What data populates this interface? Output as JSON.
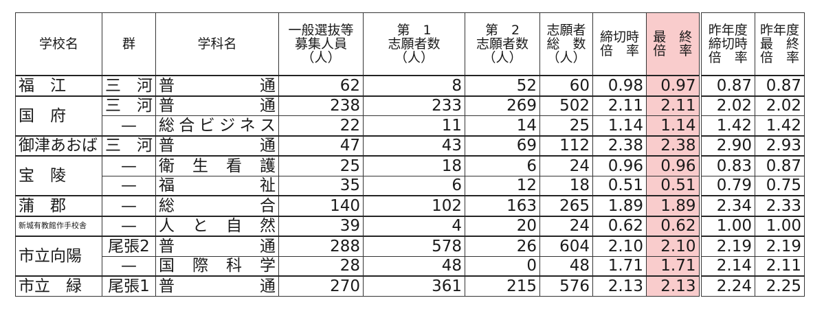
{
  "accent_color": "#f9cccc",
  "headers": [
    {
      "lines": [
        "学校名"
      ]
    },
    {
      "lines": [
        "群"
      ]
    },
    {
      "lines": [
        "学科名"
      ]
    },
    {
      "lines": [
        "一般選抜等",
        "募集人員",
        "（人）"
      ]
    },
    {
      "lines": [
        "第　1",
        "志願者数",
        "（人）"
      ]
    },
    {
      "lines": [
        "第　2",
        "志願者数",
        "（人）"
      ]
    },
    {
      "lines": [
        "志願者",
        "総　数",
        "（人）"
      ]
    },
    {
      "lines": [
        "締切時",
        "倍　率"
      ]
    },
    {
      "lines": [
        "最　終",
        "倍　率"
      ]
    },
    {
      "lines": [
        "昨年度",
        "締切時",
        "倍　率"
      ]
    },
    {
      "lines": [
        "昨年度",
        "最　終",
        "倍　率"
      ]
    }
  ],
  "rows": [
    {
      "school": "福　江",
      "school_span": 1,
      "group": "三　河",
      "dept": "普通",
      "values": [
        "62",
        "8",
        "52",
        "60",
        "0.98",
        "0.97",
        "0.87",
        "0.87"
      ]
    },
    {
      "school": "国　府",
      "school_span": 2,
      "group": "三　河",
      "dept": "普通",
      "values": [
        "238",
        "233",
        "269",
        "502",
        "2.11",
        "2.11",
        "2.02",
        "2.02"
      ]
    },
    {
      "school": null,
      "group": "—",
      "dept": "総合ビジネス",
      "values": [
        "22",
        "11",
        "14",
        "25",
        "1.14",
        "1.14",
        "1.42",
        "1.42"
      ]
    },
    {
      "school": "御津あおば",
      "school_span": 1,
      "group": "三　河",
      "dept": "普通",
      "values": [
        "47",
        "43",
        "69",
        "112",
        "2.38",
        "2.38",
        "2.90",
        "2.93"
      ]
    },
    {
      "school": "宝　陵",
      "school_span": 2,
      "group": "—",
      "dept": "衛生看護",
      "values": [
        "25",
        "18",
        "6",
        "24",
        "0.96",
        "0.96",
        "0.83",
        "0.87"
      ]
    },
    {
      "school": null,
      "group": "—",
      "dept": "福祉",
      "values": [
        "35",
        "6",
        "12",
        "18",
        "0.51",
        "0.51",
        "0.79",
        "0.75"
      ]
    },
    {
      "school": "蒲　郡",
      "school_span": 1,
      "group": "—",
      "dept": "総合",
      "values": [
        "140",
        "102",
        "163",
        "265",
        "1.89",
        "1.89",
        "2.34",
        "2.33"
      ]
    },
    {
      "school": "新城有教館作手校舎",
      "school_span": 1,
      "small": true,
      "group": "—",
      "dept": "人と自然",
      "values": [
        "39",
        "4",
        "20",
        "24",
        "0.62",
        "0.62",
        "1.00",
        "1.00"
      ]
    },
    {
      "school": "市立向陽",
      "school_span": 2,
      "group": "尾張2",
      "dept": "普通",
      "values": [
        "288",
        "578",
        "26",
        "604",
        "2.10",
        "2.10",
        "2.19",
        "2.19"
      ]
    },
    {
      "school": null,
      "group": "—",
      "dept": "国際科学",
      "values": [
        "28",
        "48",
        "0",
        "48",
        "1.71",
        "1.71",
        "2.14",
        "2.11"
      ]
    },
    {
      "school": "市立　緑",
      "school_span": 1,
      "group": "尾張1",
      "dept": "普通",
      "values": [
        "270",
        "361",
        "215",
        "576",
        "2.13",
        "2.13",
        "2.24",
        "2.25"
      ]
    }
  ]
}
